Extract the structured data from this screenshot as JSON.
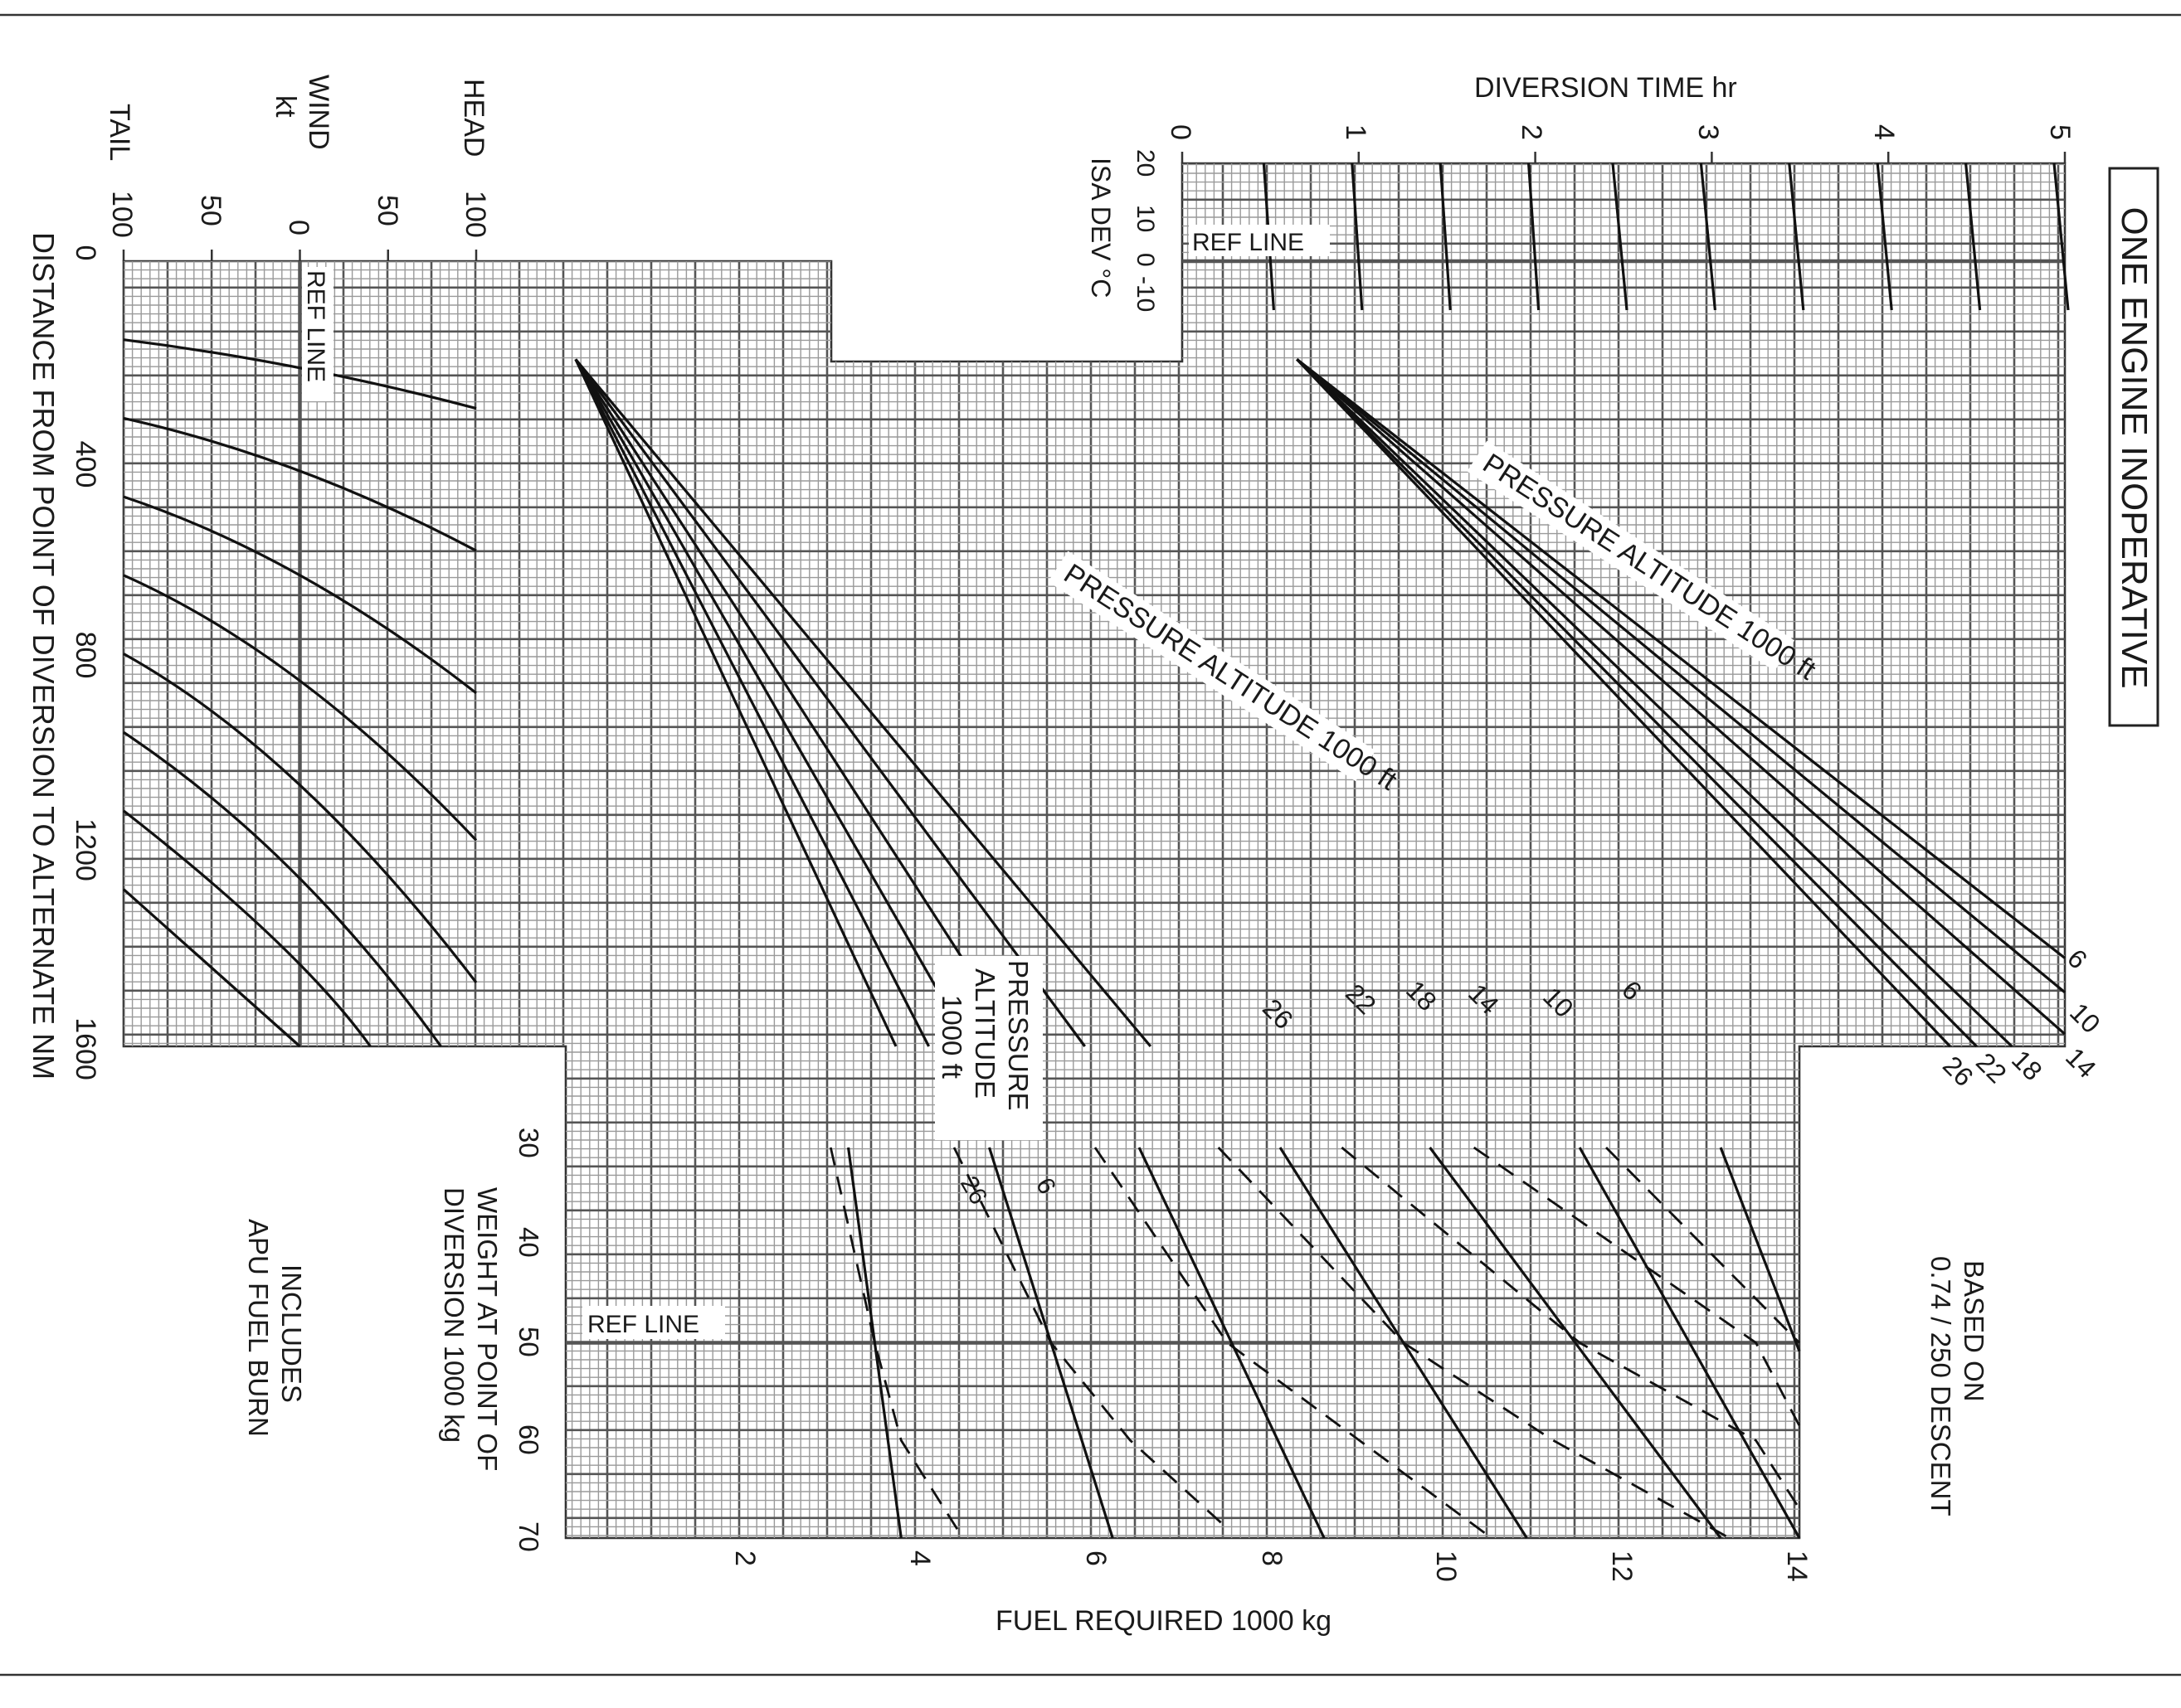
{
  "title": "ONE ENGINE INOPERATIVE",
  "colors": {
    "line": "#111111",
    "grid_minor": "#9a9a9a",
    "grid_major": "#555555",
    "background": "#ffffff"
  },
  "wind_panel": {
    "axis_title_1": "WIND",
    "axis_title_2": "kt",
    "tail": "TAIL",
    "head": "HEAD",
    "ticks": [
      "100",
      "50",
      "0",
      "50",
      "100"
    ],
    "ref_line": "REF LINE"
  },
  "distance_axis": {
    "label": "DISTANCE FROM POINT OF DIVERSION TO ALTERNATE  NM",
    "ticks": [
      "0",
      "400",
      "800",
      "1200",
      "1600"
    ]
  },
  "time_panel": {
    "axis_title": "DIVERSION TIME   hr",
    "ticks": [
      "0",
      "1",
      "2",
      "3",
      "4",
      "5"
    ],
    "isa_label": "ISA DEV °C",
    "isa_ticks": [
      "20",
      "10",
      "0",
      "-10"
    ],
    "ref_line": "REF LINE",
    "altitude_label": "PRESSURE ALTITUDE  1000 ft",
    "altitude_tags": [
      "6",
      "10",
      "14",
      "18",
      "22",
      "26"
    ]
  },
  "fuel_panel": {
    "altitude_label": "PRESSURE ALTITUDE  1000 ft",
    "altitude_tags": [
      "26",
      "22",
      "18",
      "14",
      "10",
      "6"
    ],
    "box_label_1": "PRESSURE",
    "box_label_2": "ALTITUDE",
    "box_label_3": "1000 ft",
    "weight_label_1": "WEIGHT AT POINT OF",
    "weight_label_2": "DIVERSION  1000 kg",
    "weight_ticks": [
      "30",
      "40",
      "50",
      "60",
      "70"
    ],
    "ref_line": "REF LINE",
    "curve_tags": [
      "26",
      "6"
    ],
    "fuel_axis_label": "FUEL REQUIRED    1000 kg",
    "fuel_ticks": [
      "2",
      "4",
      "6",
      "8",
      "10",
      "12",
      "14"
    ]
  },
  "notes": {
    "based_on_1": "BASED ON",
    "based_on_2": "0.74 / 250 DESCENT",
    "includes_1": "INCLUDES",
    "includes_2": "APU FUEL BURN"
  },
  "chart_data": [
    {
      "type": "line",
      "panel": "wind correction",
      "x_axis": "WIND kt (TAIL 100 … HEAD 100)",
      "y_axis": "DISTANCE FROM POINT OF DIVERSION TO ALTERNATE NM",
      "xlim": [
        -100,
        100
      ],
      "ylim": [
        0,
        1600
      ],
      "series": [
        {
          "points": [
            [
              -100,
              160
            ],
            [
              0,
              205
            ],
            [
              100,
              300
            ]
          ]
        },
        {
          "points": [
            [
              -100,
              320
            ],
            [
              0,
              400
            ],
            [
              100,
              590
            ]
          ]
        },
        {
          "points": [
            [
              -100,
              480
            ],
            [
              0,
              600
            ],
            [
              100,
              880
            ]
          ]
        },
        {
          "points": [
            [
              -100,
              640
            ],
            [
              0,
              800
            ],
            [
              100,
              1180
            ]
          ]
        },
        {
          "points": [
            [
              -100,
              800
            ],
            [
              0,
              1000
            ],
            [
              100,
              1470
            ]
          ]
        },
        {
          "points": [
            [
              -100,
              960
            ],
            [
              0,
              1200
            ],
            [
              80,
              1600
            ]
          ]
        },
        {
          "points": [
            [
              -100,
              1120
            ],
            [
              0,
              1400
            ],
            [
              40,
              1600
            ]
          ]
        },
        {
          "points": [
            [
              -100,
              1280
            ],
            [
              0,
              1600
            ]
          ]
        }
      ]
    },
    {
      "type": "line",
      "panel": "diversion time vs distance and pressure altitude",
      "x_axis": "DIVERSION TIME hr",
      "xlim": [
        0,
        5
      ],
      "ylim": [
        0,
        1600
      ],
      "isa_dev_ticks": [
        20,
        10,
        0,
        -10
      ],
      "series": [
        {
          "name": "6",
          "points": [
            [
              0.65,
              200
            ],
            [
              5.0,
              1420
            ]
          ]
        },
        {
          "name": "10",
          "points": [
            [
              0.65,
              200
            ],
            [
              5.0,
              1490
            ]
          ]
        },
        {
          "name": "14",
          "points": [
            [
              0.65,
              200
            ],
            [
              5.0,
              1575
            ]
          ]
        },
        {
          "name": "18",
          "points": [
            [
              0.65,
              200
            ],
            [
              4.7,
              1600
            ]
          ]
        },
        {
          "name": "22",
          "points": [
            [
              0.65,
              200
            ],
            [
              4.5,
              1600
            ]
          ]
        },
        {
          "name": "26",
          "points": [
            [
              0.65,
              200
            ],
            [
              4.35,
              1600
            ]
          ]
        }
      ],
      "isa_lines_time_at_ref": [
        0.5,
        1.0,
        1.5,
        2.0,
        2.5,
        3.0,
        3.5,
        4.0,
        4.5,
        5.0
      ]
    },
    {
      "type": "line",
      "panel": "fuel (reference) vs distance and pressure altitude",
      "x_axis": "FUEL REQUIRED 1000 kg",
      "xlim": [
        0,
        14
      ],
      "ylim": [
        0,
        1600
      ],
      "series": [
        {
          "name": "6",
          "points": [
            [
              -0.9,
              200
            ],
            [
              6.1,
              1600
            ]
          ]
        },
        {
          "name": "10",
          "points": [
            [
              -0.9,
              200
            ],
            [
              5.3,
              1600
            ]
          ]
        },
        {
          "name": "14",
          "points": [
            [
              -0.9,
              200
            ],
            [
              4.5,
              1600
            ]
          ]
        },
        {
          "name": "18",
          "points": [
            [
              -0.9,
              200
            ],
            [
              3.9,
              1600
            ]
          ]
        },
        {
          "name": "22",
          "points": [
            [
              -0.9,
              200
            ],
            [
              3.4,
              1600
            ]
          ]
        },
        {
          "name": "26",
          "points": [
            [
              -0.9,
              200
            ],
            [
              3.0,
              1600
            ]
          ]
        }
      ]
    },
    {
      "type": "line",
      "panel": "weight correction",
      "x_axis": "FUEL REQUIRED 1000 kg",
      "y_axis": "WEIGHT AT POINT OF DIVERSION 1000 kg",
      "xlim": [
        0,
        14
      ],
      "ylim": [
        30,
        70
      ],
      "ref_weight": 50,
      "solid_lines": [
        {
          "fuel_at_30": 1.7,
          "fuel_at_70": 2.3
        },
        {
          "fuel_at_30": 3.3,
          "fuel_at_70": 4.7
        },
        {
          "fuel_at_30": 5.0,
          "fuel_at_70": 7.1
        },
        {
          "fuel_at_30": 6.6,
          "fuel_at_70": 9.4
        },
        {
          "fuel_at_30": 8.3,
          "fuel_at_70": 11.6
        },
        {
          "fuel_at_30": 10.0,
          "fuel_at_70": 14.0
        },
        {
          "fuel_at_30": 11.6,
          "fuel_at_70": 16.2
        }
      ],
      "dashed_lines": [
        {
          "points": [
            [
              1.5,
              30
            ],
            [
              2.0,
              50
            ],
            [
              2.3,
              60
            ],
            [
              3.0,
              70
            ]
          ]
        },
        {
          "points": [
            [
              2.9,
              30
            ],
            [
              4.0,
              50
            ],
            [
              4.9,
              60
            ],
            [
              6.0,
              69
            ]
          ]
        },
        {
          "points": [
            [
              4.5,
              30
            ],
            [
              6.0,
              50
            ],
            [
              7.5,
              60
            ],
            [
              9.0,
              70
            ]
          ]
        },
        {
          "points": [
            [
              5.9,
              30
            ],
            [
              8.0,
              50
            ],
            [
              9.7,
              60
            ],
            [
              11.7,
              70
            ]
          ]
        },
        {
          "points": [
            [
              7.3,
              30
            ],
            [
              10.0,
              50
            ],
            [
              12.0,
              60
            ],
            [
              14.0,
              67
            ]
          ]
        },
        {
          "points": [
            [
              8.8,
              30
            ],
            [
              12.0,
              50
            ],
            [
              14.0,
              58.5
            ]
          ]
        },
        {
          "points": [
            [
              10.3,
              30
            ],
            [
              14.0,
              50
            ]
          ]
        }
      ]
    }
  ]
}
